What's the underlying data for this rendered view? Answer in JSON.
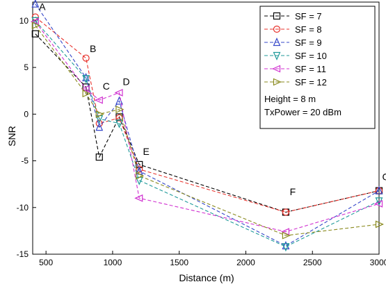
{
  "chart_data": {
    "type": "line",
    "title": "",
    "xlabel": "Distance (m)",
    "ylabel": "SNR",
    "xlim": [
      400,
      3000
    ],
    "ylim": [
      -15,
      12
    ],
    "xticks": [
      500,
      1000,
      1500,
      2000,
      2500,
      3000
    ],
    "yticks": [
      -15,
      -10,
      -5,
      0,
      5,
      10
    ],
    "grid": false,
    "legend_position": "top-right",
    "series": [
      {
        "name": "SF = 7",
        "color": "#000000",
        "marker": "square",
        "x": [
          420,
          800,
          900,
          1050,
          1200,
          2300,
          3000
        ],
        "y": [
          8.6,
          2.9,
          -4.6,
          -0.3,
          -5.4,
          -10.5,
          -8.2
        ]
      },
      {
        "name": "SF = 8",
        "color": "#e8302a",
        "marker": "circle",
        "x": [
          420,
          800,
          900,
          1050,
          1200,
          2300,
          3000
        ],
        "y": [
          10.4,
          6.0,
          -1.0,
          -0.4,
          -5.9,
          -10.5,
          -8.2
        ]
      },
      {
        "name": "SF = 9",
        "color": "#3547c9",
        "marker": "triangle-up",
        "x": [
          420,
          800,
          900,
          1050,
          1200,
          2300,
          3000
        ],
        "y": [
          11.8,
          3.9,
          -1.4,
          1.4,
          -6.1,
          -14.1,
          -8.2
        ]
      },
      {
        "name": "SF = 10",
        "color": "#1f9a9a",
        "marker": "triangle-down",
        "x": [
          420,
          800,
          900,
          1050,
          1200,
          2300,
          3000
        ],
        "y": [
          10.0,
          3.8,
          -0.5,
          -1.0,
          -7.1,
          -14.2,
          -9.3
        ]
      },
      {
        "name": "SF = 11",
        "color": "#d030d0",
        "marker": "triangle-left",
        "x": [
          420,
          800,
          900,
          1050,
          1200,
          2300,
          3000
        ],
        "y": [
          9.9,
          2.7,
          1.5,
          2.3,
          -9.0,
          -12.6,
          -9.6
        ]
      },
      {
        "name": "SF = 12",
        "color": "#8a8a1e",
        "marker": "triangle-right",
        "x": [
          420,
          800,
          900,
          1050,
          1200,
          2300,
          3000
        ],
        "y": [
          9.5,
          2.2,
          0.0,
          0.5,
          -6.6,
          -13.0,
          -11.8
        ]
      }
    ],
    "annotations": [
      {
        "text": "A",
        "x": 420,
        "y": 11.5
      },
      {
        "text": "B",
        "x": 800,
        "y": 7.0
      },
      {
        "text": "C",
        "x": 900,
        "y": 3.0
      },
      {
        "text": "D",
        "x": 1050,
        "y": 3.5
      },
      {
        "text": "E",
        "x": 1200,
        "y": -4.0
      },
      {
        "text": "F",
        "x": 2300,
        "y": -8.3
      },
      {
        "text": "G",
        "x": 3000,
        "y": -6.7
      }
    ],
    "legend_notes": [
      "Height = 8 m",
      "TxPower = 20 dBm"
    ]
  }
}
